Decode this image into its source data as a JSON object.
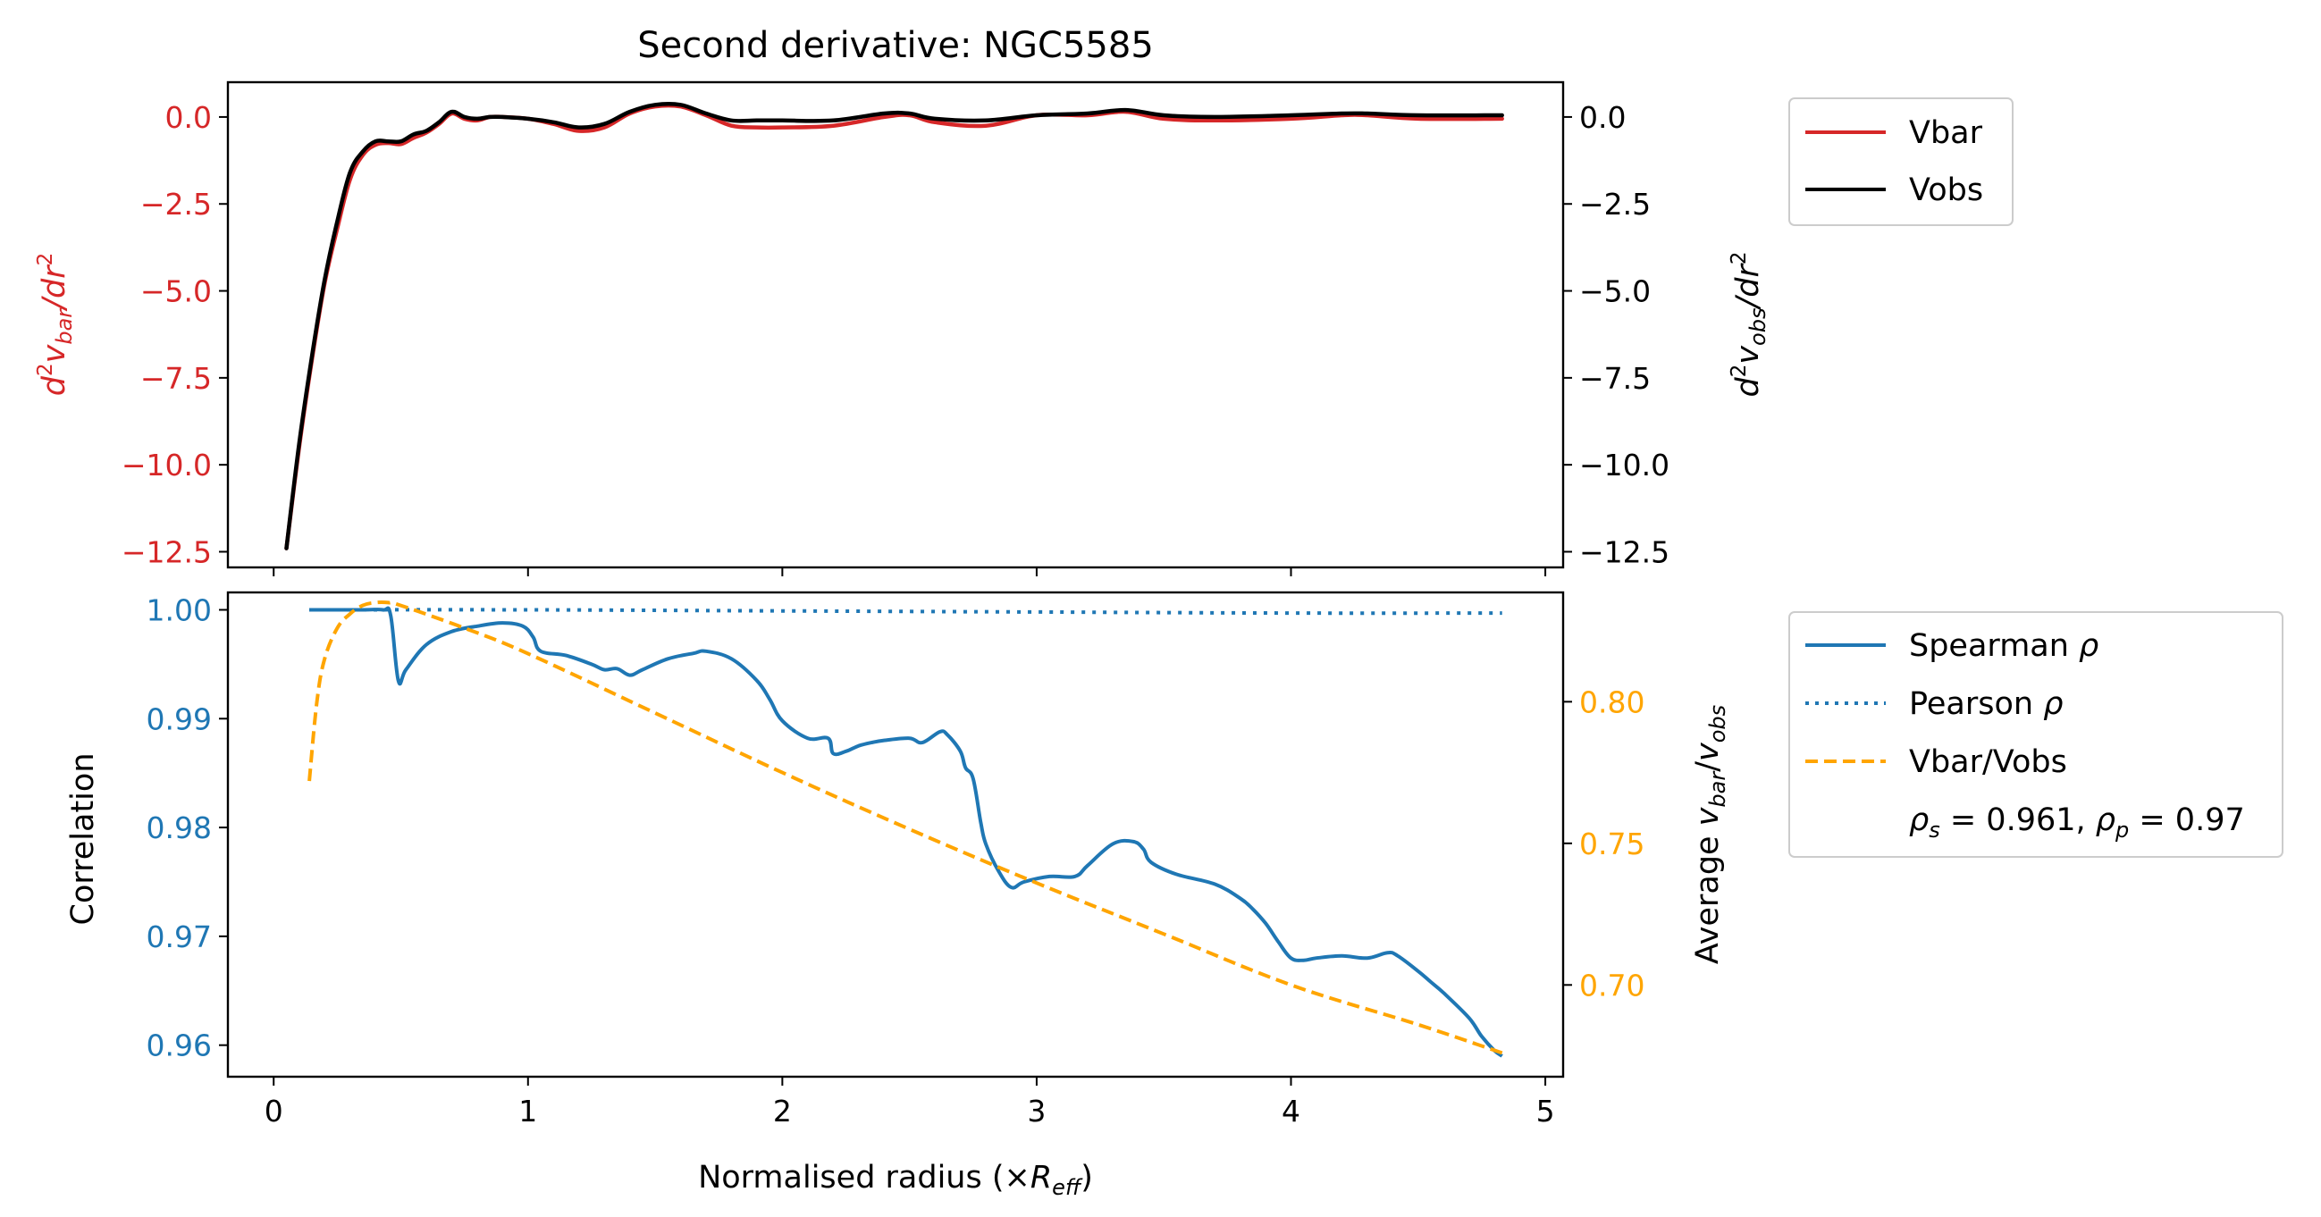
{
  "colors": {
    "vbar": "#d62728",
    "vobs": "#000000",
    "spearman": "#1f77b4",
    "pearson": "#1f77b4",
    "ratio": "#ffa500",
    "left_axis_top": "#d62728",
    "left_axis_bottom": "#1f77b4",
    "right_axis_bottom": "#ffa500"
  },
  "chart_data": [
    {
      "type": "line",
      "title": "Second derivative: NGC5585",
      "ylabel_left": "d²v_bar/dr²",
      "ylabel_right": "d²v_obs/dr²",
      "xlim": [
        -0.18,
        5.07
      ],
      "ylim": [
        -12.95,
        1.0
      ],
      "ylim_right": [
        -12.95,
        1.0
      ],
      "xticks": [
        0,
        1,
        2,
        3,
        4,
        5
      ],
      "yticks": [
        0.0,
        -2.5,
        -5.0,
        -7.5,
        -10.0,
        -12.5
      ],
      "yticks_right": [
        0.0,
        -2.5,
        -5.0,
        -7.5,
        -10.0,
        -12.5
      ],
      "ytick_labels": [
        "0.0",
        "−2.5",
        "−5.0",
        "−7.5",
        "−10.0",
        "−12.5"
      ],
      "legend": [
        "Vbar",
        "Vobs"
      ],
      "legend_position": "outside-right-top",
      "series": [
        {
          "name": "Vbar",
          "axis": "left",
          "x": [
            0.05,
            0.1,
            0.15,
            0.2,
            0.25,
            0.3,
            0.35,
            0.4,
            0.45,
            0.5,
            0.55,
            0.6,
            0.65,
            0.7,
            0.75,
            0.8,
            0.85,
            0.9,
            1.0,
            1.1,
            1.2,
            1.3,
            1.4,
            1.5,
            1.6,
            1.7,
            1.8,
            1.9,
            2.0,
            2.2,
            2.4,
            2.5,
            2.6,
            2.8,
            3.0,
            3.2,
            3.35,
            3.5,
            3.7,
            4.0,
            4.2,
            4.3,
            4.5,
            4.83
          ],
          "values": [
            -12.4,
            -9.5,
            -7.0,
            -4.8,
            -3.2,
            -1.8,
            -1.1,
            -0.8,
            -0.75,
            -0.78,
            -0.6,
            -0.45,
            -0.2,
            0.1,
            -0.05,
            -0.1,
            0.0,
            0.0,
            -0.05,
            -0.2,
            -0.4,
            -0.3,
            0.1,
            0.3,
            0.3,
            0.05,
            -0.25,
            -0.3,
            -0.3,
            -0.25,
            0.0,
            0.05,
            -0.15,
            -0.25,
            0.05,
            0.05,
            0.15,
            -0.05,
            -0.1,
            -0.05,
            0.05,
            0.05,
            -0.05,
            -0.05
          ]
        },
        {
          "name": "Vobs",
          "axis": "right",
          "x": [
            0.05,
            0.1,
            0.15,
            0.2,
            0.25,
            0.3,
            0.35,
            0.4,
            0.45,
            0.5,
            0.55,
            0.6,
            0.65,
            0.7,
            0.75,
            0.8,
            0.85,
            0.9,
            1.0,
            1.1,
            1.2,
            1.3,
            1.4,
            1.5,
            1.6,
            1.7,
            1.8,
            1.9,
            2.0,
            2.2,
            2.4,
            2.5,
            2.6,
            2.8,
            3.0,
            3.2,
            3.35,
            3.5,
            3.7,
            4.0,
            4.2,
            4.3,
            4.5,
            4.83
          ],
          "values": [
            -12.4,
            -9.4,
            -6.9,
            -4.7,
            -3.0,
            -1.6,
            -1.0,
            -0.7,
            -0.7,
            -0.7,
            -0.5,
            -0.4,
            -0.15,
            0.15,
            0.0,
            -0.05,
            0.0,
            0.0,
            -0.05,
            -0.15,
            -0.3,
            -0.2,
            0.15,
            0.35,
            0.35,
            0.1,
            -0.1,
            -0.1,
            -0.1,
            -0.1,
            0.1,
            0.1,
            -0.05,
            -0.1,
            0.05,
            0.1,
            0.2,
            0.05,
            0.0,
            0.05,
            0.1,
            0.1,
            0.05,
            0.05
          ]
        }
      ]
    },
    {
      "type": "line",
      "xlabel": "Normalised radius (×R_eff)",
      "ylabel_left": "Correlation",
      "ylabel_right": "Average v_bar/v_obs",
      "xlim": [
        -0.18,
        5.07
      ],
      "ylim": [
        0.9571,
        1.0016
      ],
      "ylim_right": [
        0.6676,
        0.8386
      ],
      "xticks": [
        0,
        1,
        2,
        3,
        4,
        5
      ],
      "yticks": [
        1.0,
        0.99,
        0.98,
        0.97,
        0.96
      ],
      "ytick_labels": [
        "1.00",
        "0.99",
        "0.98",
        "0.97",
        "0.96"
      ],
      "yticks_right": [
        0.8,
        0.75,
        0.7
      ],
      "ytick_labels_right": [
        "0.80",
        "0.75",
        "0.70"
      ],
      "legend": [
        "Spearman ρ",
        "Pearson ρ",
        "Vbar/Vobs"
      ],
      "legend_note": "ρs = 0.961, ρp = 0.97",
      "legend_position": "outside-right",
      "series": [
        {
          "name": "Spearman ρ",
          "axis": "left",
          "style": "solid",
          "x": [
            0.14,
            0.35,
            0.43,
            0.46,
            0.49,
            0.52,
            0.6,
            0.7,
            0.8,
            0.9,
            0.98,
            1.02,
            1.05,
            1.15,
            1.25,
            1.3,
            1.35,
            1.4,
            1.45,
            1.55,
            1.65,
            1.7,
            1.8,
            1.9,
            1.95,
            2.0,
            2.1,
            2.18,
            2.2,
            2.25,
            2.3,
            2.35,
            2.4,
            2.5,
            2.55,
            2.62,
            2.65,
            2.7,
            2.72,
            2.75,
            2.78,
            2.8,
            2.85,
            2.9,
            2.95,
            3.05,
            3.15,
            3.2,
            3.3,
            3.38,
            3.42,
            3.45,
            3.55,
            3.7,
            3.8,
            3.85,
            3.9,
            3.95,
            4.0,
            4.05,
            4.1,
            4.2,
            4.3,
            4.38,
            4.42,
            4.5,
            4.55,
            4.6,
            4.7,
            4.75,
            4.8,
            4.83
          ],
          "values": [
            1.0,
            1.0,
            1.0,
            0.9995,
            0.9935,
            0.9945,
            0.9968,
            0.998,
            0.9985,
            0.9988,
            0.9985,
            0.9975,
            0.9962,
            0.9958,
            0.995,
            0.9945,
            0.9946,
            0.994,
            0.9945,
            0.9955,
            0.996,
            0.9962,
            0.9955,
            0.9935,
            0.9918,
            0.9898,
            0.9882,
            0.9882,
            0.9868,
            0.987,
            0.9875,
            0.9878,
            0.988,
            0.9882,
            0.9878,
            0.9888,
            0.9885,
            0.987,
            0.9855,
            0.9845,
            0.9805,
            0.9785,
            0.976,
            0.9745,
            0.975,
            0.9755,
            0.9755,
            0.9765,
            0.9785,
            0.9787,
            0.978,
            0.9768,
            0.9757,
            0.9748,
            0.9735,
            0.9725,
            0.9712,
            0.9695,
            0.968,
            0.9678,
            0.968,
            0.9682,
            0.968,
            0.9685,
            0.9682,
            0.9668,
            0.9658,
            0.9648,
            0.9625,
            0.9608,
            0.9595,
            0.959
          ]
        },
        {
          "name": "Pearson ρ",
          "axis": "left",
          "style": "dotted",
          "x": [
            0.14,
            1.0,
            2.0,
            3.0,
            4.0,
            4.83
          ],
          "values": [
            1.0,
            1.0,
            0.9999,
            0.9998,
            0.9997,
            0.9997
          ]
        },
        {
          "name": "Vbar/Vobs",
          "axis": "right",
          "style": "dashed",
          "x": [
            0.14,
            0.17,
            0.2,
            0.25,
            0.3,
            0.35,
            0.4,
            0.45,
            0.5,
            0.75,
            1.0,
            1.5,
            2.0,
            2.5,
            3.0,
            3.5,
            4.0,
            4.5,
            4.83
          ],
          "values": [
            0.772,
            0.8,
            0.815,
            0.826,
            0.831,
            0.834,
            0.835,
            0.835,
            0.834,
            0.826,
            0.817,
            0.796,
            0.775,
            0.755,
            0.736,
            0.718,
            0.7,
            0.686,
            0.676
          ]
        }
      ]
    }
  ]
}
